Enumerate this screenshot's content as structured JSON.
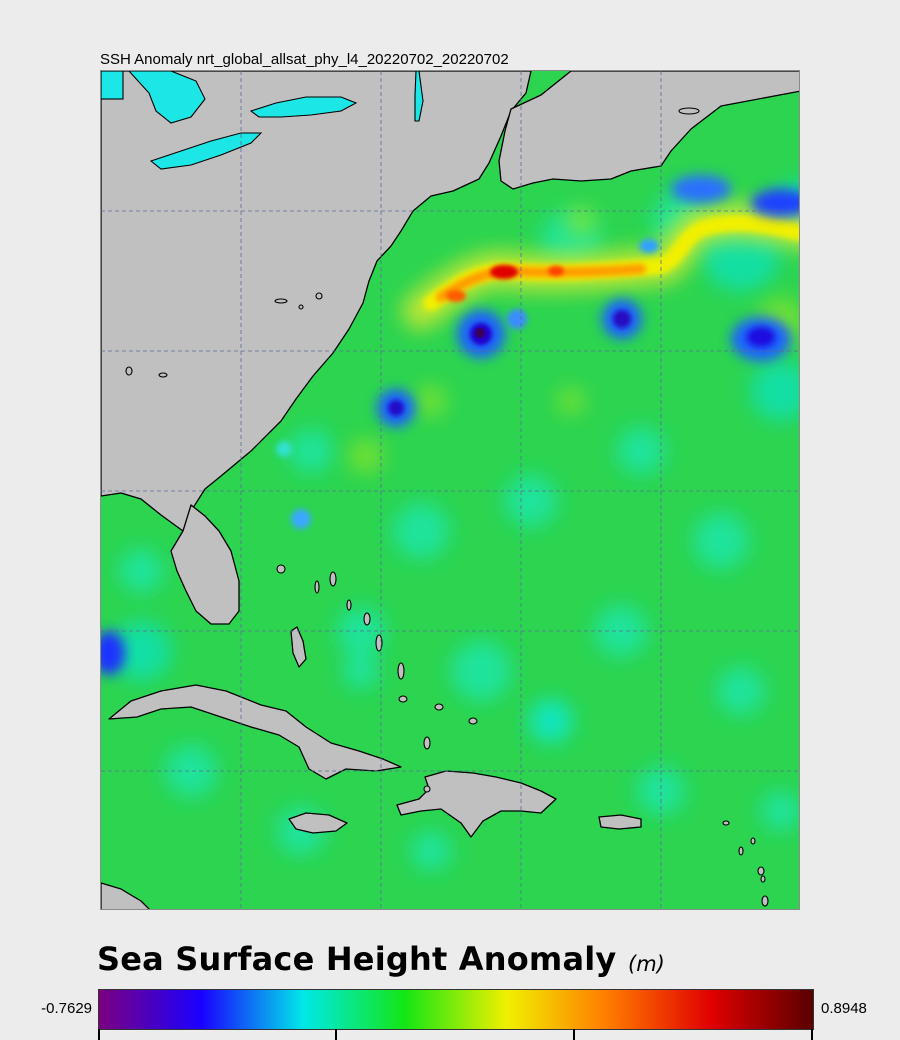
{
  "map": {
    "title": "SSH Anomaly nrt_global_allsat_phy_l4_20220702_20220702",
    "variable": "Sea Surface Height Anomaly",
    "region": "Western North Atlantic / Caribbean",
    "background_value_m": 0.0,
    "grid": true,
    "land_color": "#c0c0c0",
    "coastline_color": "#000000",
    "features": [
      {
        "name": "gulf-stream-ridge",
        "sign": "positive",
        "value_m": 0.6
      },
      {
        "name": "cold-eddy-west",
        "sign": "negative",
        "value_m": -0.7
      },
      {
        "name": "cold-eddy-central",
        "sign": "negative",
        "value_m": -0.65
      },
      {
        "name": "cold-eddy-east",
        "sign": "negative",
        "value_m": -0.6
      },
      {
        "name": "cold-eddy-south",
        "sign": "negative",
        "value_m": -0.55
      },
      {
        "name": "cold-anomaly-northeast",
        "sign": "negative",
        "value_m": -0.5
      },
      {
        "name": "cold-anomaly-gulf-of-mexico",
        "sign": "negative",
        "value_m": -0.5
      }
    ]
  },
  "legend": {
    "title": "Sea Surface Height Anomaly",
    "unit": "(m)",
    "min": "-0.7629",
    "max": "0.8948",
    "colormap": [
      "#7b0080",
      "#1a00ff",
      "#00e8e8",
      "#14e614",
      "#f0f000",
      "#ff7a00",
      "#e00000",
      "#5a0000"
    ]
  }
}
